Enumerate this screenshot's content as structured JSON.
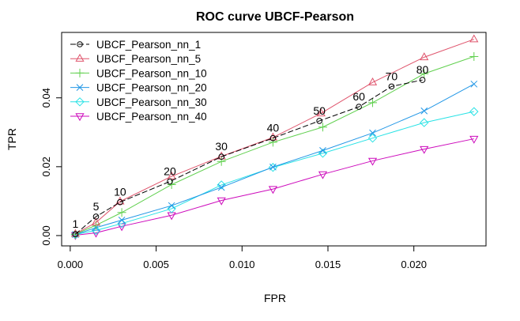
{
  "chart_data": {
    "type": "line",
    "title": "ROC curve UBCF-Pearson",
    "xlabel": "FPR",
    "ylabel": "TPR",
    "xlim": [
      -0.0005,
      0.0242
    ],
    "ylim": [
      -0.003,
      0.059
    ],
    "x_ticks": [
      0.0,
      0.005,
      0.01,
      0.015,
      0.02
    ],
    "x_tick_labels": [
      "0.000",
      "0.005",
      "0.010",
      "0.015",
      "0.020"
    ],
    "y_ticks": [
      0.0,
      0.02,
      0.04
    ],
    "y_tick_labels": [
      "0.00",
      "0.02",
      "0.04"
    ],
    "legend_position": "top-left",
    "series": [
      {
        "name": "UBCF_Pearson_nn_1",
        "color": "#000000",
        "marker": "circle",
        "x": [
          0.0003,
          0.0015,
          0.0029,
          0.0058,
          0.0088,
          0.0118,
          0.0145,
          0.0168,
          0.0187,
          0.0205
        ],
        "y": [
          0.0004,
          0.0055,
          0.0097,
          0.0157,
          0.0229,
          0.0283,
          0.0333,
          0.0374,
          0.0433,
          0.0452
        ]
      },
      {
        "name": "UBCF_Pearson_nn_5",
        "color": "#DF536B",
        "marker": "triangle-up",
        "x": [
          0.0003,
          0.0015,
          0.0029,
          0.0059,
          0.0088,
          0.0118,
          0.0146,
          0.0176,
          0.0206,
          0.0235
        ],
        "y": [
          0.0005,
          0.0038,
          0.0099,
          0.0172,
          0.023,
          0.0285,
          0.0355,
          0.0445,
          0.0518,
          0.057
        ]
      },
      {
        "name": "UBCF_Pearson_nn_10",
        "color": "#61D04F",
        "marker": "plus",
        "x": [
          0.0003,
          0.0015,
          0.003,
          0.0059,
          0.0088,
          0.0118,
          0.0147,
          0.0176,
          0.0206,
          0.0235
        ],
        "y": [
          0.0004,
          0.003,
          0.0067,
          0.0148,
          0.0215,
          0.0271,
          0.0315,
          0.0386,
          0.047,
          0.052
        ]
      },
      {
        "name": "UBCF_Pearson_nn_20",
        "color": "#2297E6",
        "marker": "x",
        "x": [
          0.0003,
          0.0015,
          0.003,
          0.0059,
          0.0088,
          0.0118,
          0.0147,
          0.0176,
          0.0206,
          0.0235
        ],
        "y": [
          0.0003,
          0.0023,
          0.0045,
          0.0087,
          0.014,
          0.0199,
          0.0247,
          0.0298,
          0.0362,
          0.044
        ]
      },
      {
        "name": "UBCF_Pearson_nn_30",
        "color": "#28E2E5",
        "marker": "diamond",
        "x": [
          0.0003,
          0.0015,
          0.003,
          0.0059,
          0.0088,
          0.0118,
          0.0147,
          0.0176,
          0.0206,
          0.0235
        ],
        "y": [
          0.0003,
          0.0015,
          0.0035,
          0.0078,
          0.0147,
          0.0198,
          0.0239,
          0.0283,
          0.0328,
          0.036
        ]
      },
      {
        "name": "UBCF_Pearson_nn_40",
        "color": "#CD0BBC",
        "marker": "triangle-down",
        "x": [
          0.0003,
          0.0015,
          0.003,
          0.0059,
          0.0088,
          0.0118,
          0.0147,
          0.0176,
          0.0206,
          0.0235
        ],
        "y": [
          0.0001,
          0.0008,
          0.0027,
          0.0059,
          0.0102,
          0.0135,
          0.0178,
          0.0217,
          0.0251,
          0.0281
        ]
      }
    ],
    "annotations": [
      {
        "text": "1",
        "x": 0.0003,
        "y": 0.0004
      },
      {
        "text": "5",
        "x": 0.0015,
        "y": 0.0055
      },
      {
        "text": "10",
        "x": 0.0029,
        "y": 0.0097
      },
      {
        "text": "20",
        "x": 0.0058,
        "y": 0.0157
      },
      {
        "text": "30",
        "x": 0.0088,
        "y": 0.0229
      },
      {
        "text": "40",
        "x": 0.0118,
        "y": 0.0283
      },
      {
        "text": "50",
        "x": 0.0145,
        "y": 0.0333
      },
      {
        "text": "60",
        "x": 0.0168,
        "y": 0.0374
      },
      {
        "text": "70",
        "x": 0.0187,
        "y": 0.0433
      },
      {
        "text": "80",
        "x": 0.0205,
        "y": 0.0452
      }
    ]
  }
}
